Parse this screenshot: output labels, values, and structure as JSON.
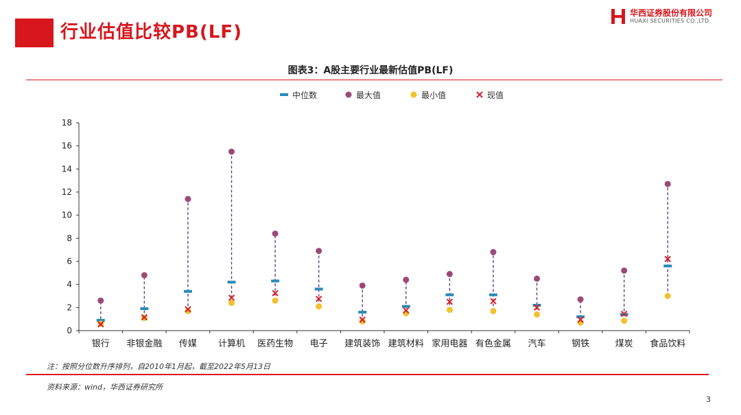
{
  "header": {
    "title": "行业估值比较PB(LF)",
    "brand_name": "华西证券股份有限公司",
    "brand_sub": "HUAXI SECURITIES CO.,LTD."
  },
  "chart_title": "图表3：A股主要行业最新估值PB(LF)",
  "footer": {
    "note": "注：按照分位数升序排列，自2010年1月起，截至2022年5月13日",
    "source": "资料来源：wind，华西证券研究所",
    "page_number": "3"
  },
  "colors": {
    "brand_red": "#d7161d",
    "median": "#2a8bb5",
    "max": "#9b4a78",
    "min": "#f2c12e",
    "current": "#d62027",
    "range_line": "#5b3d86"
  },
  "chart_data": {
    "type": "scatter",
    "categories": [
      "银行",
      "非银金融",
      "传媒",
      "计算机",
      "医药生物",
      "电子",
      "建筑装饰",
      "建筑材料",
      "家用电器",
      "有色金属",
      "汽车",
      "钢铁",
      "煤炭",
      "食品饮料"
    ],
    "series": [
      {
        "name": "中位数",
        "marker": "dash",
        "values": [
          0.9,
          1.9,
          3.4,
          4.2,
          4.3,
          3.6,
          1.6,
          2.1,
          3.1,
          3.1,
          2.2,
          1.2,
          1.4,
          5.6
        ]
      },
      {
        "name": "最大值",
        "marker": "circle",
        "values": [
          2.6,
          4.8,
          11.4,
          15.5,
          8.4,
          6.9,
          3.9,
          4.4,
          4.9,
          6.8,
          4.5,
          2.7,
          5.2,
          12.7
        ]
      },
      {
        "name": "最小值",
        "marker": "circle",
        "values": [
          0.6,
          1.1,
          1.7,
          2.4,
          2.6,
          2.1,
          0.8,
          1.5,
          1.8,
          1.7,
          1.4,
          0.7,
          0.85,
          3.0
        ]
      },
      {
        "name": "现值",
        "marker": "x",
        "values": [
          0.55,
          1.15,
          1.85,
          2.85,
          3.25,
          2.75,
          0.95,
          1.75,
          2.5,
          2.55,
          2.0,
          0.95,
          1.45,
          6.2
        ]
      }
    ],
    "y_ticks": [
      "0",
      "2",
      "4",
      "6",
      "8",
      "10",
      "12",
      "14",
      "16",
      "18"
    ],
    "ylim": [
      0,
      18
    ],
    "grid": false,
    "legend_position": "top-center"
  }
}
